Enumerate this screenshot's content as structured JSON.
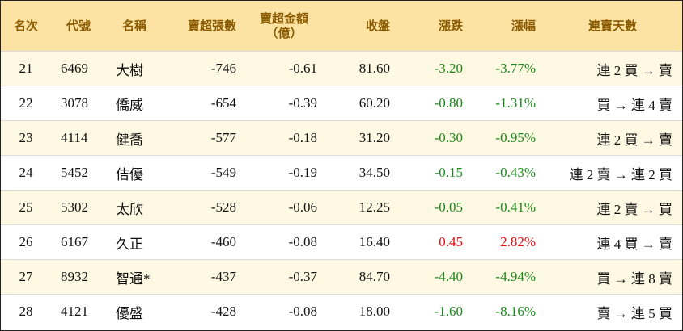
{
  "table": {
    "header": [
      "名次",
      "代號",
      "名稱",
      "賣超張數",
      "賣超金額\n（億）",
      "收盤",
      "漲跌",
      "漲幅",
      "連賣天數"
    ],
    "rows": [
      [
        "21",
        "6469",
        "大樹",
        "-746",
        "-0.61",
        "81.60",
        "-3.20",
        "-3.77%",
        "連 2 買 → 賣"
      ],
      [
        "22",
        "3078",
        "僑威",
        "-654",
        "-0.39",
        "60.20",
        "-0.80",
        "-1.31%",
        "買 → 連 4 賣"
      ],
      [
        "23",
        "4114",
        "健喬",
        "-577",
        "-0.18",
        "31.20",
        "-0.30",
        "-0.95%",
        "連 2 買 → 賣"
      ],
      [
        "24",
        "5452",
        "佶優",
        "-549",
        "-0.19",
        "34.50",
        "-0.15",
        "-0.43%",
        "連 2 賣 → 連 2 買"
      ],
      [
        "25",
        "5302",
        "太欣",
        "-528",
        "-0.06",
        "12.25",
        "-0.05",
        "-0.41%",
        "連 2 賣 → 買"
      ],
      [
        "26",
        "6167",
        "久正",
        "-460",
        "-0.08",
        "16.40",
        "0.45",
        "2.82%",
        "連 4 買 → 賣"
      ],
      [
        "27",
        "8932",
        "智通*",
        "-437",
        "-0.37",
        "84.70",
        "-4.40",
        "-4.94%",
        "買 → 連 8 賣"
      ],
      [
        "28",
        "4121",
        "優盛",
        "-428",
        "-0.08",
        "18.00",
        "-1.60",
        "-8.16%",
        "賣 → 連 5 買"
      ]
    ]
  }
}
